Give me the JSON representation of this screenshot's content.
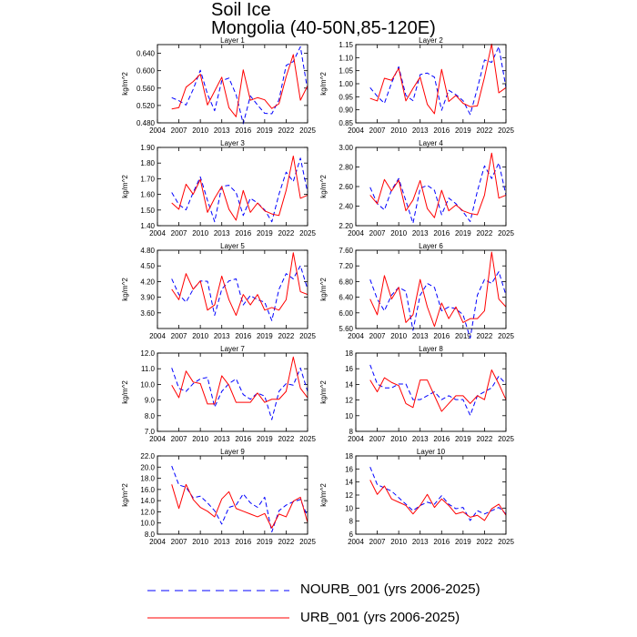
{
  "title": "Soil Ice",
  "subtitle": "Mongolia (40-50N,85-120E)",
  "legend": [
    {
      "label": "NOURB_001 (yrs 2006-2025)",
      "color": "#0000ff",
      "dash": true
    },
    {
      "label": "URB_001 (yrs 2006-2025)",
      "color": "#ff0000",
      "dash": false
    }
  ],
  "colors": {
    "nourb": "#0000ff",
    "urb": "#ff0000"
  },
  "chart_data": [
    {
      "type": "line",
      "title": "Layer 1",
      "ylabel": "kg/m^2",
      "xlim": [
        2004,
        2025
      ],
      "ylim": [
        0.48,
        0.66
      ],
      "xticks": [
        2004,
        2007,
        2010,
        2013,
        2016,
        2019,
        2022,
        2025
      ],
      "xtick_labels": [
        "2004",
        "2007",
        "2010",
        "2013",
        "2016",
        "2019",
        "2022",
        "2025"
      ],
      "yticks": [
        0.48,
        0.52,
        0.56,
        0.6,
        0.64
      ],
      "ytick_labels": [
        "0.480",
        "0.520",
        "0.560",
        "0.600",
        "0.640"
      ],
      "x": [
        2006,
        2007,
        2008,
        2009,
        2010,
        2011,
        2012,
        2013,
        2014,
        2015,
        2016,
        2017,
        2018,
        2019,
        2020,
        2021,
        2022,
        2023,
        2024,
        2025
      ],
      "series": [
        {
          "name": "NOURB_001",
          "values": [
            0.538,
            0.531,
            0.521,
            0.557,
            0.601,
            0.546,
            0.508,
            0.577,
            0.583,
            0.545,
            0.478,
            0.542,
            0.521,
            0.502,
            0.501,
            0.533,
            0.612,
            0.621,
            0.655,
            0.555
          ]
        },
        {
          "name": "URB_001",
          "values": [
            0.512,
            0.515,
            0.562,
            0.575,
            0.592,
            0.521,
            0.553,
            0.585,
            0.515,
            0.494,
            0.602,
            0.532,
            0.538,
            0.533,
            0.513,
            0.524,
            0.586,
            0.637,
            0.532,
            0.565
          ]
        }
      ]
    },
    {
      "type": "line",
      "title": "Layer 2",
      "ylabel": "kg/m^2",
      "xlim": [
        2004,
        2025
      ],
      "ylim": [
        0.85,
        1.15
      ],
      "xticks": [
        2004,
        2007,
        2010,
        2013,
        2016,
        2019,
        2022,
        2025
      ],
      "xtick_labels": [
        "2004",
        "2007",
        "2010",
        "2013",
        "2016",
        "2019",
        "2022",
        "2025"
      ],
      "yticks": [
        0.85,
        0.9,
        0.95,
        1.0,
        1.05,
        1.1,
        1.15
      ],
      "ytick_labels": [
        "0.85",
        "0.90",
        "0.95",
        "1.00",
        "1.05",
        "1.10",
        "1.15"
      ],
      "x": [
        2006,
        2007,
        2008,
        2009,
        2010,
        2011,
        2012,
        2013,
        2014,
        2015,
        2016,
        2017,
        2018,
        2019,
        2020,
        2021,
        2022,
        2023,
        2024,
        2025
      ],
      "series": [
        {
          "name": "NOURB_001",
          "values": [
            0.985,
            0.952,
            0.925,
            1.003,
            1.065,
            0.955,
            0.935,
            1.035,
            1.041,
            1.025,
            0.898,
            0.975,
            0.958,
            0.935,
            0.882,
            0.982,
            1.091,
            1.082,
            1.142,
            0.985
          ]
        },
        {
          "name": "URB_001",
          "values": [
            0.944,
            0.934,
            1.021,
            1.013,
            1.059,
            0.934,
            0.982,
            1.025,
            0.921,
            0.885,
            1.055,
            0.932,
            0.955,
            0.925,
            0.912,
            0.915,
            1.025,
            1.152,
            0.965,
            0.985
          ]
        }
      ]
    },
    {
      "type": "line",
      "title": "Layer 3",
      "ylabel": "kg/m^2",
      "xlim": [
        2004,
        2025
      ],
      "ylim": [
        1.4,
        1.9
      ],
      "xticks": [
        2004,
        2007,
        2010,
        2013,
        2016,
        2019,
        2022,
        2025
      ],
      "xtick_labels": [
        "2004",
        "2007",
        "2010",
        "2013",
        "2016",
        "2019",
        "2022",
        "2025"
      ],
      "yticks": [
        1.4,
        1.5,
        1.6,
        1.7,
        1.8,
        1.9
      ],
      "ytick_labels": [
        "1.40",
        "1.50",
        "1.60",
        "1.70",
        "1.80",
        "1.90"
      ],
      "x": [
        2006,
        2007,
        2008,
        2009,
        2010,
        2011,
        2012,
        2013,
        2014,
        2015,
        2016,
        2017,
        2018,
        2019,
        2020,
        2021,
        2022,
        2023,
        2024,
        2025
      ],
      "series": [
        {
          "name": "NOURB_001",
          "values": [
            1.612,
            1.535,
            1.501,
            1.612,
            1.712,
            1.562,
            1.425,
            1.651,
            1.658,
            1.612,
            1.465,
            1.575,
            1.545,
            1.501,
            1.425,
            1.601,
            1.742,
            1.682,
            1.832,
            1.612
          ]
        },
        {
          "name": "URB_001",
          "values": [
            1.545,
            1.505,
            1.665,
            1.601,
            1.695,
            1.485,
            1.575,
            1.651,
            1.505,
            1.435,
            1.625,
            1.485,
            1.545,
            1.495,
            1.475,
            1.465,
            1.625,
            1.845,
            1.575,
            1.595
          ]
        }
      ]
    },
    {
      "type": "line",
      "title": "Layer 4",
      "ylabel": "kg/m^2",
      "xlim": [
        2004,
        2025
      ],
      "ylim": [
        2.2,
        3.0
      ],
      "xticks": [
        2004,
        2007,
        2010,
        2013,
        2016,
        2019,
        2022,
        2025
      ],
      "xtick_labels": [
        "2004",
        "2007",
        "2010",
        "2013",
        "2016",
        "2019",
        "2022",
        "2025"
      ],
      "yticks": [
        2.2,
        2.4,
        2.6,
        2.8,
        3.0
      ],
      "ytick_labels": [
        "2.20",
        "2.40",
        "2.60",
        "2.80",
        "3.00"
      ],
      "x": [
        2006,
        2007,
        2008,
        2009,
        2010,
        2011,
        2012,
        2013,
        2014,
        2015,
        2016,
        2017,
        2018,
        2019,
        2020,
        2021,
        2022,
        2023,
        2024,
        2025
      ],
      "series": [
        {
          "name": "NOURB_001",
          "values": [
            2.592,
            2.425,
            2.362,
            2.565,
            2.682,
            2.455,
            2.225,
            2.582,
            2.612,
            2.562,
            2.312,
            2.482,
            2.425,
            2.342,
            2.242,
            2.552,
            2.812,
            2.682,
            2.842,
            2.512
          ]
        },
        {
          "name": "URB_001",
          "values": [
            2.512,
            2.425,
            2.672,
            2.555,
            2.665,
            2.352,
            2.462,
            2.662,
            2.375,
            2.282,
            2.562,
            2.352,
            2.412,
            2.352,
            2.325,
            2.312,
            2.512,
            2.942,
            2.482,
            2.512
          ]
        }
      ]
    },
    {
      "type": "line",
      "title": "Layer 5",
      "ylabel": "kg/m^2",
      "xlim": [
        2004,
        2025
      ],
      "ylim": [
        3.3,
        4.8
      ],
      "xticks": [
        2004,
        2007,
        2010,
        2013,
        2016,
        2019,
        2022,
        2025
      ],
      "xtick_labels": [
        "2004",
        "2007",
        "2010",
        "2013",
        "2016",
        "2019",
        "2022",
        "2025"
      ],
      "yticks": [
        3.6,
        3.9,
        4.2,
        4.5,
        4.8
      ],
      "ytick_labels": [
        "3.60",
        "3.90",
        "4.20",
        "4.50",
        "4.80"
      ],
      "x": [
        2006,
        2007,
        2008,
        2009,
        2010,
        2011,
        2012,
        2013,
        2014,
        2015,
        2016,
        2017,
        2018,
        2019,
        2020,
        2021,
        2022,
        2023,
        2024,
        2025
      ],
      "series": [
        {
          "name": "NOURB_001",
          "values": [
            4.252,
            3.952,
            3.805,
            4.052,
            4.212,
            4.205,
            3.552,
            4.052,
            4.212,
            4.252,
            3.752,
            3.932,
            3.852,
            3.805,
            3.452,
            4.052,
            4.352,
            4.252,
            4.505,
            4.052
          ]
        },
        {
          "name": "URB_001",
          "values": [
            4.052,
            3.852,
            4.352,
            4.052,
            4.212,
            3.652,
            3.752,
            4.305,
            3.852,
            3.552,
            3.952,
            3.752,
            3.952,
            3.652,
            3.702,
            3.652,
            3.852,
            4.752,
            4.005,
            3.952
          ]
        }
      ]
    },
    {
      "type": "line",
      "title": "Layer 6",
      "ylabel": "kg/m^2",
      "xlim": [
        2004,
        2025
      ],
      "ylim": [
        5.6,
        7.6
      ],
      "xticks": [
        2004,
        2007,
        2010,
        2013,
        2016,
        2019,
        2022,
        2025
      ],
      "xtick_labels": [
        "2004",
        "2007",
        "2010",
        "2013",
        "2016",
        "2019",
        "2022",
        "2025"
      ],
      "yticks": [
        5.6,
        6.0,
        6.4,
        6.8,
        7.2,
        7.6
      ],
      "ytick_labels": [
        "5.60",
        "6.00",
        "6.40",
        "6.80",
        "7.20",
        "7.60"
      ],
      "x": [
        2006,
        2007,
        2008,
        2009,
        2010,
        2011,
        2012,
        2013,
        2014,
        2015,
        2016,
        2017,
        2018,
        2019,
        2020,
        2021,
        2022,
        2023,
        2024,
        2025
      ],
      "series": [
        {
          "name": "NOURB_001",
          "values": [
            6.852,
            6.352,
            6.052,
            6.452,
            6.652,
            6.552,
            5.552,
            6.452,
            6.752,
            6.652,
            6.052,
            6.152,
            6.105,
            5.952,
            5.352,
            6.452,
            6.852,
            6.752,
            7.052,
            6.452
          ]
        },
        {
          "name": "URB_001",
          "values": [
            6.352,
            5.952,
            6.952,
            6.352,
            6.652,
            5.752,
            5.952,
            6.852,
            6.152,
            5.652,
            6.252,
            5.852,
            6.152,
            5.752,
            5.852,
            5.852,
            6.052,
            7.552,
            6.352,
            6.152
          ]
        }
      ]
    },
    {
      "type": "line",
      "title": "Layer 7",
      "ylabel": "kg/m^2",
      "xlim": [
        2004,
        2025
      ],
      "ylim": [
        7.0,
        12.0
      ],
      "xticks": [
        2004,
        2007,
        2010,
        2013,
        2016,
        2019,
        2022,
        2025
      ],
      "xtick_labels": [
        "2004",
        "2007",
        "2010",
        "2013",
        "2016",
        "2019",
        "2022",
        "2025"
      ],
      "yticks": [
        7.0,
        8.0,
        9.0,
        10.0,
        11.0,
        12.0
      ],
      "ytick_labels": [
        "7.0",
        "8.0",
        "9.0",
        "10.0",
        "11.0",
        "12.0"
      ],
      "x": [
        2006,
        2007,
        2008,
        2009,
        2010,
        2011,
        2012,
        2013,
        2014,
        2015,
        2016,
        2017,
        2018,
        2019,
        2020,
        2021,
        2022,
        2023,
        2024,
        2025
      ],
      "series": [
        {
          "name": "NOURB_001",
          "values": [
            11.05,
            9.75,
            9.55,
            10.05,
            10.35,
            10.45,
            8.55,
            9.55,
            10.05,
            10.35,
            9.35,
            9.05,
            9.45,
            9.25,
            7.75,
            9.55,
            10.05,
            9.95,
            11.05,
            9.55
          ]
        },
        {
          "name": "URB_001",
          "values": [
            9.95,
            9.15,
            10.85,
            10.15,
            10.05,
            8.75,
            8.75,
            10.55,
            9.95,
            8.85,
            8.85,
            8.85,
            9.45,
            8.85,
            9.05,
            9.05,
            9.55,
            11.75,
            9.75,
            9.15
          ]
        }
      ]
    },
    {
      "type": "line",
      "title": "Layer 8",
      "ylabel": "kg/m^2",
      "xlim": [
        2004,
        2025
      ],
      "ylim": [
        8,
        18
      ],
      "xticks": [
        2004,
        2007,
        2010,
        2013,
        2016,
        2019,
        2022,
        2025
      ],
      "xtick_labels": [
        "2004",
        "2007",
        "2010",
        "2013",
        "2016",
        "2019",
        "2022",
        "2025"
      ],
      "yticks": [
        8,
        10,
        12,
        14,
        16,
        18
      ],
      "ytick_labels": [
        "8",
        "10",
        "12",
        "14",
        "16",
        "18"
      ],
      "x": [
        2006,
        2007,
        2008,
        2009,
        2010,
        2011,
        2012,
        2013,
        2014,
        2015,
        2016,
        2017,
        2018,
        2019,
        2020,
        2021,
        2022,
        2023,
        2024,
        2025
      ],
      "series": [
        {
          "name": "NOURB_001",
          "values": [
            16.5,
            14.05,
            13.55,
            13.55,
            14.05,
            14.05,
            12.05,
            12.05,
            12.55,
            13.05,
            12.05,
            12.55,
            12.05,
            12.05,
            10.05,
            12.55,
            13.05,
            13.55,
            15.05,
            14.05
          ]
        },
        {
          "name": "URB_001",
          "values": [
            14.55,
            13.05,
            14.85,
            14.25,
            13.85,
            11.55,
            11.05,
            14.55,
            14.55,
            12.55,
            10.55,
            11.55,
            12.55,
            12.55,
            11.55,
            12.55,
            12.05,
            15.85,
            14.05,
            12.05
          ]
        }
      ]
    },
    {
      "type": "line",
      "title": "Layer 9",
      "ylabel": "kg/m^2",
      "xlim": [
        2004,
        2025
      ],
      "ylim": [
        8.0,
        22.0
      ],
      "xticks": [
        2004,
        2007,
        2010,
        2013,
        2016,
        2019,
        2022,
        2025
      ],
      "xtick_labels": [
        "2004",
        "2007",
        "2010",
        "2013",
        "2016",
        "2019",
        "2022",
        "2025"
      ],
      "yticks": [
        8.0,
        10.0,
        12.0,
        14.0,
        16.0,
        18.0,
        20.0,
        22.0
      ],
      "ytick_labels": [
        "8.0",
        "10.0",
        "12.0",
        "14.0",
        "16.0",
        "18.0",
        "20.0",
        "22.0"
      ],
      "x": [
        2006,
        2007,
        2008,
        2009,
        2010,
        2011,
        2012,
        2013,
        2014,
        2015,
        2016,
        2017,
        2018,
        2019,
        2020,
        2021,
        2022,
        2023,
        2024,
        2025
      ],
      "series": [
        {
          "name": "NOURB_001",
          "values": [
            20.2,
            16.8,
            16.4,
            14.5,
            14.8,
            13.6,
            12.2,
            9.8,
            12.8,
            13.2,
            15.2,
            13.6,
            12.8,
            14.6,
            8.4,
            12.2,
            13.2,
            13.8,
            14.2,
            11.2
          ]
        },
        {
          "name": "URB_001",
          "values": [
            16.9,
            12.6,
            16.9,
            14.2,
            12.8,
            12.1,
            11.1,
            14.3,
            15.6,
            12.6,
            12.1,
            11.6,
            11.1,
            11.7,
            9.1,
            11.6,
            11.1,
            13.9,
            14.6,
            10.1
          ]
        }
      ]
    },
    {
      "type": "line",
      "title": "Layer 10",
      "ylabel": "kg/m^2",
      "xlim": [
        2004,
        2025
      ],
      "ylim": [
        6,
        18
      ],
      "xticks": [
        2004,
        2007,
        2010,
        2013,
        2016,
        2019,
        2022,
        2025
      ],
      "xtick_labels": [
        "2004",
        "2007",
        "2010",
        "2013",
        "2016",
        "2019",
        "2022",
        "2025"
      ],
      "yticks": [
        6,
        8,
        10,
        12,
        14,
        16,
        18
      ],
      "ytick_labels": [
        "6",
        "8",
        "10",
        "12",
        "14",
        "16",
        "18"
      ],
      "x": [
        2006,
        2007,
        2008,
        2009,
        2010,
        2011,
        2012,
        2013,
        2014,
        2015,
        2016,
        2017,
        2018,
        2019,
        2020,
        2021,
        2022,
        2023,
        2024,
        2025
      ],
      "series": [
        {
          "name": "NOURB_001",
          "values": [
            16.3,
            13.6,
            13.1,
            12.6,
            11.6,
            10.6,
            9.6,
            10.4,
            10.9,
            10.6,
            11.9,
            10.6,
            9.9,
            10.1,
            8.1,
            9.6,
            9.1,
            9.6,
            10.1,
            9.1
          ]
        },
        {
          "name": "URB_001",
          "values": [
            14.3,
            12.1,
            13.4,
            11.4,
            10.9,
            10.4,
            9.1,
            10.4,
            12.1,
            10.1,
            11.4,
            10.4,
            9.1,
            9.4,
            8.6,
            8.9,
            8.1,
            9.9,
            10.6,
            8.9
          ]
        }
      ]
    }
  ]
}
